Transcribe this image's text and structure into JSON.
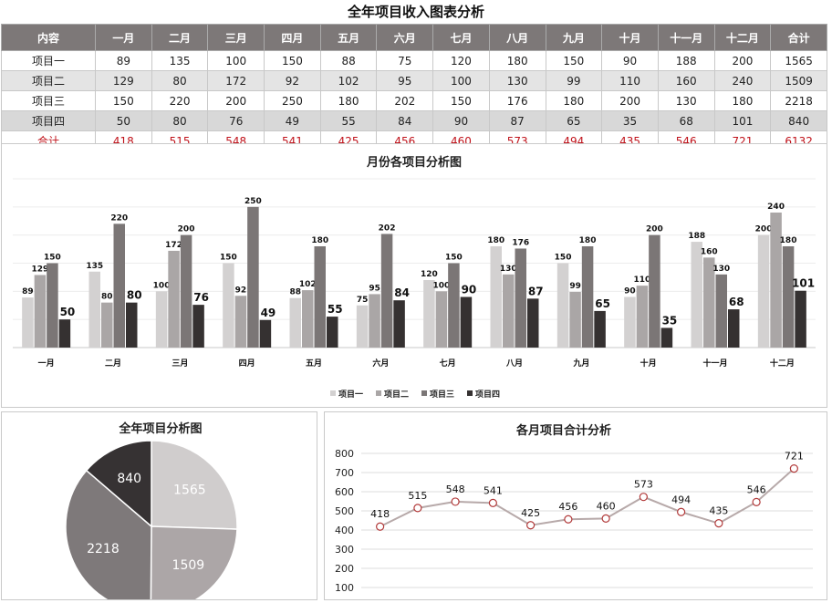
{
  "page_title": "全年项目收入图表分析",
  "table": {
    "header_label": "内容",
    "months": [
      "一月",
      "二月",
      "三月",
      "四月",
      "五月",
      "六月",
      "七月",
      "八月",
      "九月",
      "十月",
      "十一月",
      "十二月"
    ],
    "total_col_label": "合计",
    "rows": [
      {
        "name": "项目一",
        "values": [
          89,
          135,
          100,
          150,
          88,
          75,
          120,
          180,
          150,
          90,
          188,
          200
        ],
        "total": 1565
      },
      {
        "name": "项目二",
        "values": [
          129,
          80,
          172,
          92,
          102,
          95,
          100,
          130,
          99,
          110,
          160,
          240
        ],
        "total": 1509
      },
      {
        "name": "项目三",
        "values": [
          150,
          220,
          200,
          250,
          180,
          202,
          150,
          176,
          180,
          200,
          130,
          180
        ],
        "total": 2218
      },
      {
        "name": "项目四",
        "values": [
          50,
          80,
          76,
          49,
          55,
          84,
          90,
          87,
          65,
          35,
          68,
          101
        ],
        "total": 840
      }
    ],
    "total_row": {
      "name": "合计",
      "values": [
        418,
        515,
        548,
        541,
        425,
        456,
        460,
        573,
        494,
        435,
        546,
        721
      ],
      "total": 6132
    }
  },
  "chart_data": [
    {
      "type": "bar",
      "title": "月份各项目分析图",
      "categories": [
        "一月",
        "二月",
        "三月",
        "四月",
        "五月",
        "六月",
        "七月",
        "八月",
        "九月",
        "十月",
        "十一月",
        "十二月"
      ],
      "series": [
        {
          "name": "项目一",
          "values": [
            89,
            135,
            100,
            150,
            88,
            75,
            120,
            180,
            150,
            90,
            188,
            200
          ],
          "color": "#d3d1d1"
        },
        {
          "name": "项目二",
          "values": [
            129,
            80,
            172,
            92,
            102,
            95,
            100,
            130,
            99,
            110,
            160,
            240
          ],
          "color": "#aaa6a6"
        },
        {
          "name": "项目三",
          "values": [
            150,
            220,
            200,
            250,
            180,
            202,
            150,
            176,
            180,
            200,
            130,
            180
          ],
          "color": "#7b7676"
        },
        {
          "name": "项目四",
          "values": [
            50,
            80,
            76,
            49,
            55,
            84,
            90,
            87,
            65,
            35,
            68,
            101
          ],
          "color": "#353131"
        }
      ],
      "ylim": [
        0,
        300
      ],
      "grid": true,
      "legend": "bottom"
    },
    {
      "type": "pie",
      "title": "全年项目分析图",
      "labels": [
        "项目一",
        "项目二",
        "项目三",
        "项目四"
      ],
      "values": [
        1565,
        1509,
        2218,
        840
      ],
      "colors": [
        "#d0cdcd",
        "#aca6a7",
        "#7e797a",
        "#363233"
      ]
    },
    {
      "type": "line",
      "title": "各月项目合计分析",
      "categories": [
        "一月",
        "二月",
        "三月",
        "四月",
        "五月",
        "六月",
        "七月",
        "八月",
        "九月",
        "十月",
        "十一月",
        "十二月"
      ],
      "values": [
        418,
        515,
        548,
        541,
        425,
        456,
        460,
        573,
        494,
        435,
        546,
        721
      ],
      "yticks": [
        100,
        200,
        300,
        400,
        500,
        600,
        700,
        800
      ],
      "ylim": [
        100,
        800
      ],
      "grid": true,
      "line_color": "#b7a9a9",
      "marker_color": "#b23a3a"
    }
  ]
}
